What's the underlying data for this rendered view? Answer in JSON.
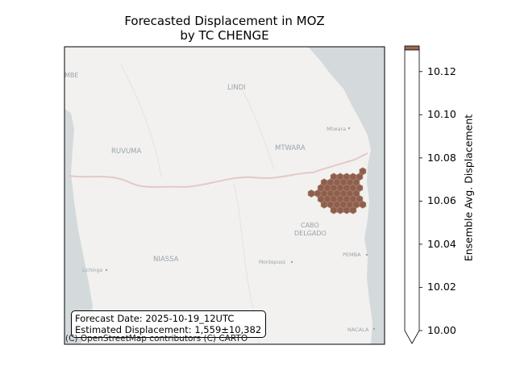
{
  "title_line1": "Forecasted Displacement in MOZ",
  "title_line2": "by TC CHENGE",
  "map_labels": {
    "mbe": "MBE",
    "lindi": "LINDI",
    "mtwara_city": "Mtwara",
    "ruvuma": "RUVUMA",
    "mtwara": "MTWARA",
    "cabo1": "CABO",
    "cabo2": "DELGADO",
    "lichinga": "Lichinga",
    "niassa": "NIASSA",
    "montepuez": "Montepuez",
    "pemba": "PEMBA",
    "nacala": "NACALA"
  },
  "info_box": {
    "line1": "Forecast Date: 2025-10-19_12UTC",
    "line2": "Estimated Displacement: 1,559±10,382"
  },
  "attribution": "(C) OpenStreetMap contributors (C) CARTO",
  "colorbar": {
    "label": "Ensemble Avg. Displacement",
    "ticks": [
      "10.00",
      "10.02",
      "10.04",
      "10.06",
      "10.08",
      "10.10",
      "10.12"
    ],
    "tick_values": [
      10.0,
      10.02,
      10.04,
      10.06,
      10.08,
      10.1,
      10.12
    ],
    "range": [
      10.0,
      10.13
    ],
    "extend": "min",
    "over_color": "#9b6a52"
  },
  "colors": {
    "hex_fill": "#8d5f4c",
    "hex_edge": "#b48a77",
    "water": "#d4dadc",
    "land": "#f2f1ef",
    "border": "#e3c9c6"
  }
}
